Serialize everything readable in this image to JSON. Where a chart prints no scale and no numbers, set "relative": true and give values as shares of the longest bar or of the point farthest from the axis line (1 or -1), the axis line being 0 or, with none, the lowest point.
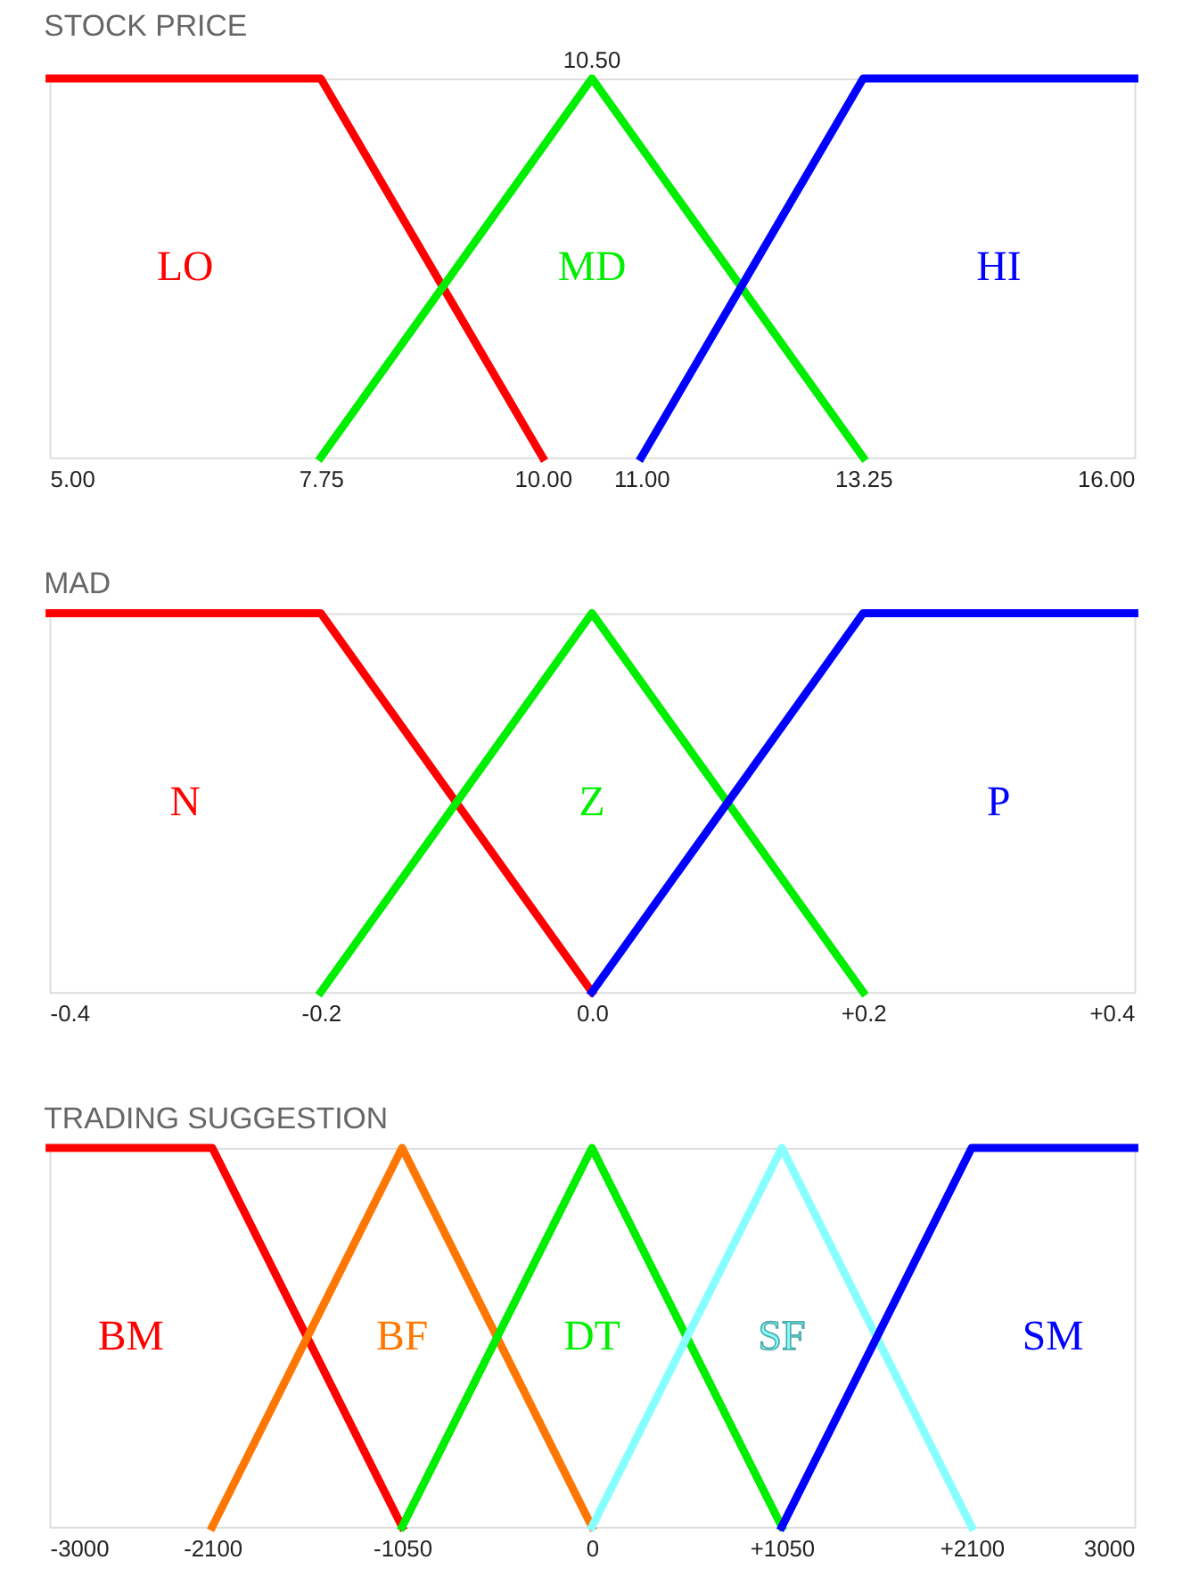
{
  "chart_data": [
    {
      "type": "line",
      "title": "STOCK PRICE",
      "relative": true,
      "xlim": [
        5,
        16
      ],
      "xticks": [
        {
          "value": 5,
          "label": "5.00"
        },
        {
          "value": 7.75,
          "label": "7.75"
        },
        {
          "value": 10,
          "label": "10.00"
        },
        {
          "value": 11,
          "label": "11.00"
        },
        {
          "value": 13.25,
          "label": "13.25"
        },
        {
          "value": 16,
          "label": "16.00"
        }
      ],
      "annotations": [
        {
          "text": "10.50",
          "x": 10.5,
          "y": 1
        }
      ],
      "series": [
        {
          "name": "LO",
          "color": "#ff0000",
          "x": [
            5,
            7.75,
            10
          ],
          "values": [
            1,
            1,
            0
          ]
        },
        {
          "name": "MD",
          "color": "#00ee00",
          "x": [
            7.75,
            10.5,
            13.25
          ],
          "values": [
            0,
            1,
            0
          ]
        },
        {
          "name": "HI",
          "color": "#0000ff",
          "x": [
            11,
            13.25,
            16
          ],
          "values": [
            0,
            1,
            1
          ]
        }
      ]
    },
    {
      "type": "line",
      "title": "MAD",
      "relative": true,
      "xlim": [
        -0.4,
        0.4
      ],
      "xticks": [
        {
          "value": -0.4,
          "label": "-0.4"
        },
        {
          "value": -0.2,
          "label": "-0.2"
        },
        {
          "value": 0,
          "label": "0.0"
        },
        {
          "value": 0.2,
          "label": "+0.2"
        },
        {
          "value": 0.4,
          "label": "+0.4"
        }
      ],
      "series": [
        {
          "name": "N",
          "color": "#ff0000",
          "x": [
            -0.4,
            -0.2,
            0
          ],
          "values": [
            1,
            1,
            0
          ]
        },
        {
          "name": "Z",
          "color": "#00ee00",
          "x": [
            -0.2,
            0,
            0.2
          ],
          "values": [
            0,
            1,
            0
          ]
        },
        {
          "name": "P",
          "color": "#0000ff",
          "x": [
            0,
            0.2,
            0.4
          ],
          "values": [
            0,
            1,
            1
          ]
        }
      ]
    },
    {
      "type": "line",
      "title": "TRADING SUGGESTION",
      "relative": true,
      "xlim": [
        -3000,
        3000
      ],
      "xticks": [
        {
          "value": -3000,
          "label": "-3000"
        },
        {
          "value": -2100,
          "label": "-2100"
        },
        {
          "value": -1050,
          "label": "-1050"
        },
        {
          "value": 0,
          "label": "0"
        },
        {
          "value": 1050,
          "label": "+1050"
        },
        {
          "value": 2100,
          "label": "+2100"
        },
        {
          "value": 3000,
          "label": "3000"
        }
      ],
      "series": [
        {
          "name": "BM",
          "color": "#ff0000",
          "x": [
            -3000,
            -2100,
            -1050
          ],
          "values": [
            1,
            1,
            0
          ]
        },
        {
          "name": "BF",
          "color": "#ff7700",
          "x": [
            -2100,
            -1050,
            0
          ],
          "values": [
            0,
            1,
            0
          ]
        },
        {
          "name": "DT",
          "color": "#00ee00",
          "x": [
            -1050,
            0,
            1050
          ],
          "values": [
            0,
            1,
            0
          ]
        },
        {
          "name": "SF",
          "color": "#88ffff",
          "x": [
            0,
            1050,
            2100
          ],
          "values": [
            0,
            1,
            0
          ]
        },
        {
          "name": "SM",
          "color": "#0000ff",
          "x": [
            1050,
            2100,
            3000
          ],
          "values": [
            0,
            1,
            1
          ]
        }
      ]
    }
  ]
}
